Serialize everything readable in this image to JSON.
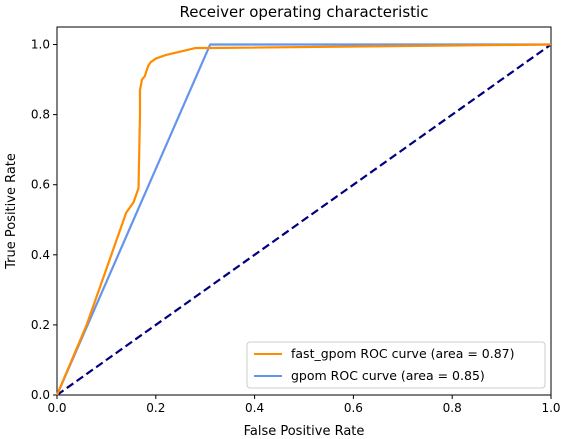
{
  "chart_data": {
    "type": "line",
    "title": "Receiver operating characteristic",
    "xlabel": "False Positive Rate",
    "ylabel": "True Positive Rate",
    "xlim": [
      0.0,
      1.0
    ],
    "ylim": [
      0.0,
      1.05
    ],
    "xticks": [
      "0.0",
      "0.2",
      "0.4",
      "0.6",
      "0.8",
      "1.0"
    ],
    "yticks": [
      "0.0",
      "0.2",
      "0.4",
      "0.6",
      "0.8",
      "1.0"
    ],
    "grid": false,
    "legend_position": "lower-right",
    "series": [
      {
        "name": "fast_gpom ROC curve (area = 0.87)",
        "color": "#ff8c00",
        "style": "solid",
        "x": [
          0.0,
          0.06,
          0.1,
          0.14,
          0.155,
          0.165,
          0.168,
          0.168,
          0.172,
          0.178,
          0.18,
          0.185,
          0.19,
          0.2,
          0.22,
          0.25,
          0.28,
          0.31,
          1.0
        ],
        "y": [
          0.0,
          0.2,
          0.36,
          0.52,
          0.55,
          0.59,
          0.8,
          0.87,
          0.9,
          0.91,
          0.92,
          0.94,
          0.95,
          0.96,
          0.97,
          0.98,
          0.99,
          0.99,
          1.0
        ]
      },
      {
        "name": "gpom ROC curve (area = 0.85)",
        "color": "#6495ed",
        "style": "solid",
        "x": [
          0.0,
          0.31,
          1.0
        ],
        "y": [
          0.0,
          1.0,
          1.0
        ]
      },
      {
        "name": "",
        "color": "#000080",
        "style": "dashed",
        "x": [
          0.0,
          1.0
        ],
        "y": [
          0.0,
          1.0
        ]
      }
    ]
  }
}
